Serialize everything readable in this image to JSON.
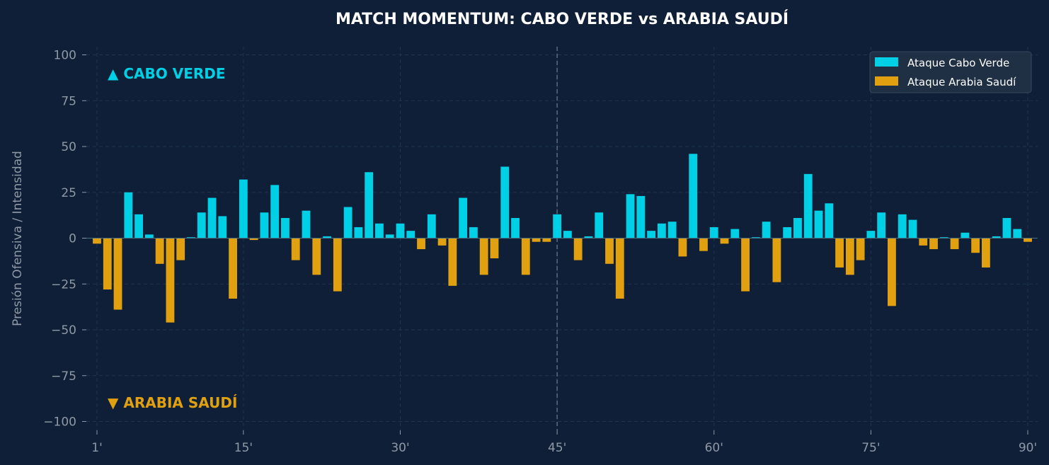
{
  "chart_data": {
    "type": "bar",
    "title": "MATCH MOMENTUM: CABO VERDE vs ARABIA SAUDÍ",
    "xlabel": "",
    "ylabel": "Presión Ofensiva / Intensidad",
    "xlim": [
      0.5,
      90.5
    ],
    "ylim": [
      -105,
      105
    ],
    "x_ticks": [
      1,
      15,
      30,
      45,
      60,
      75,
      90
    ],
    "x_tick_labels": [
      "1'",
      "15'",
      "30'",
      "45'",
      "60'",
      "75'",
      "90'"
    ],
    "y_ticks": [
      100,
      75,
      50,
      25,
      0,
      -25,
      -50,
      -75,
      -100
    ],
    "y_tick_labels": [
      "100",
      "75",
      "50",
      "25",
      "0",
      "−25",
      "−50",
      "−75",
      "−100"
    ],
    "halftime_marker": 45,
    "grid": true,
    "legend_position": "top-right",
    "colors": {
      "cabo_verde": "#00d0e6",
      "arabia_saudi": "#e0a010",
      "background": "#0f1f37"
    },
    "annotations": {
      "top": "▲ CABO VERDE",
      "bottom": "▼ ARABIA SAUDÍ"
    },
    "series": [
      {
        "name": "Ataque Cabo Verde",
        "color": "#00d0e6"
      },
      {
        "name": "Ataque Arabia Saudí",
        "color": "#e0a010"
      }
    ],
    "x": [
      1,
      2,
      3,
      4,
      5,
      6,
      7,
      8,
      9,
      10,
      11,
      12,
      13,
      14,
      15,
      16,
      17,
      18,
      19,
      20,
      21,
      22,
      23,
      24,
      25,
      26,
      27,
      28,
      29,
      30,
      31,
      32,
      33,
      34,
      35,
      36,
      37,
      38,
      39,
      40,
      41,
      42,
      43,
      44,
      45,
      46,
      47,
      48,
      49,
      50,
      51,
      52,
      53,
      54,
      55,
      56,
      57,
      58,
      59,
      60,
      61,
      62,
      63,
      64,
      65,
      66,
      67,
      68,
      69,
      70,
      71,
      72,
      73,
      74,
      75,
      76,
      77,
      78,
      79,
      80,
      81,
      82,
      83,
      84,
      85,
      86,
      87,
      88,
      89,
      90
    ],
    "values": [
      -3,
      -28,
      -39,
      25,
      13,
      2,
      -14,
      -46,
      -12,
      0.5,
      14,
      22,
      12,
      -33,
      32,
      -1,
      14,
      29,
      11,
      -12,
      15,
      -20,
      1,
      -29,
      17,
      6,
      36,
      8,
      2,
      8,
      4,
      -6,
      13,
      -4,
      -26,
      22,
      6,
      -20,
      -11,
      39,
      11,
      -20,
      -2,
      -2,
      13,
      4,
      -12,
      1,
      14,
      -14,
      -33,
      24,
      23,
      4,
      8,
      9,
      -10,
      46,
      -7,
      6,
      -3,
      5,
      -29,
      0.5,
      9,
      -24,
      6,
      11,
      35,
      15,
      19,
      -16,
      -20,
      -12,
      4,
      14,
      -37,
      13,
      10,
      -4,
      -6,
      0.5,
      -6,
      3,
      -8,
      -16,
      1,
      11,
      5,
      -2
    ]
  }
}
